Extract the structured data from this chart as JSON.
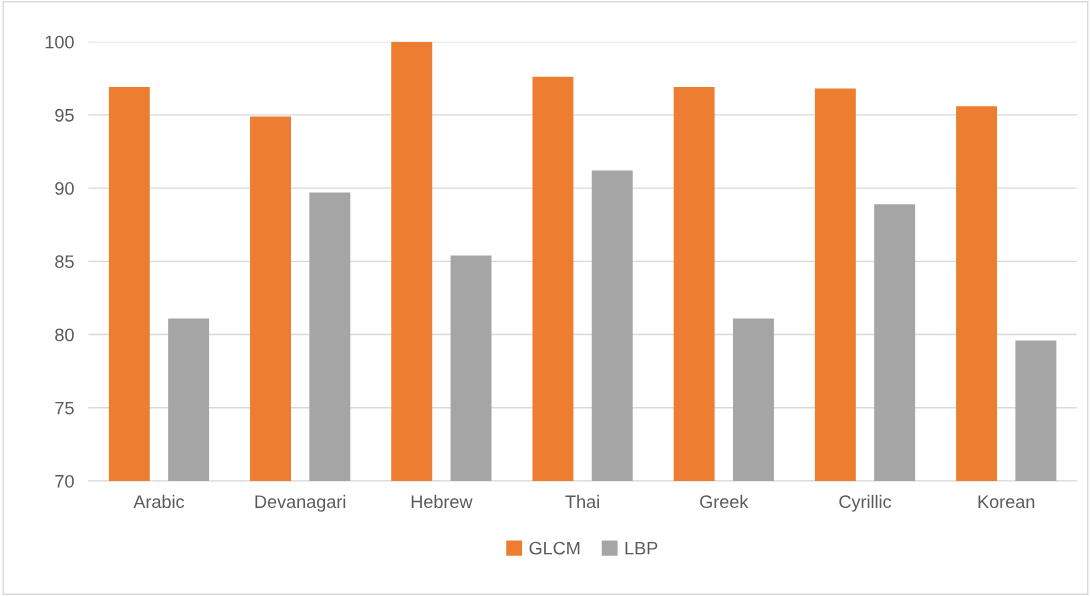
{
  "chart_data": {
    "type": "bar",
    "categories": [
      "Arabic",
      "Devanagari",
      "Hebrew",
      "Thai",
      "Greek",
      "Cyrillic",
      "Korean"
    ],
    "series": [
      {
        "name": "GLCM",
        "color": "#ed7d31",
        "values": [
          96.9,
          94.9,
          100,
          97.6,
          96.9,
          96.8,
          95.6
        ]
      },
      {
        "name": "LBP",
        "color": "#a5a5a5",
        "values": [
          81.1,
          89.7,
          85.4,
          91.2,
          81.1,
          88.9,
          79.6
        ]
      }
    ],
    "ylim": [
      70,
      100
    ],
    "yticks": [
      70,
      75,
      80,
      85,
      90,
      95,
      100
    ],
    "grid": "y",
    "legend": "bottom"
  }
}
